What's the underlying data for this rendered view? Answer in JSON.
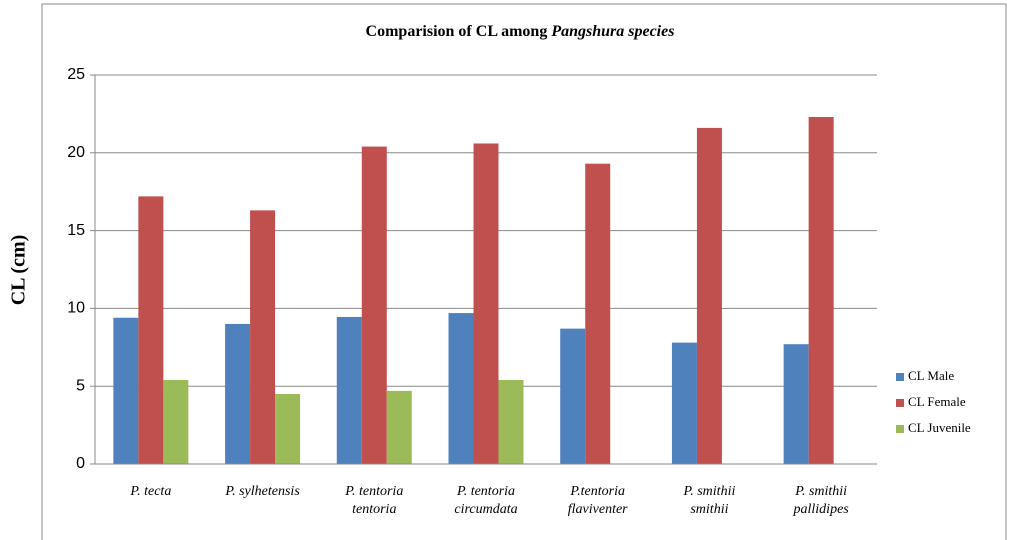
{
  "chart_data": {
    "type": "bar",
    "title": "Comparision of CL among",
    "title_italic": "Pangshura species",
    "ylabel": "CL (cm)",
    "categories": [
      [
        "P. tecta"
      ],
      [
        "P. sylhetensis"
      ],
      [
        "P. tentoria",
        "tentoria"
      ],
      [
        "P. tentoria",
        "circumdata"
      ],
      [
        "P.tentoria",
        "flaviventer"
      ],
      [
        "P. smithii",
        "smithii"
      ],
      [
        "P. smithii",
        "pallidipes"
      ]
    ],
    "series": [
      {
        "name": "CL Male",
        "color": "#4f81bd",
        "values": [
          9.4,
          9.0,
          9.45,
          9.7,
          8.7,
          7.8,
          7.7
        ]
      },
      {
        "name": "CL Female",
        "color": "#c0504d",
        "values": [
          17.2,
          16.3,
          20.4,
          20.6,
          19.3,
          21.6,
          22.3
        ]
      },
      {
        "name": "CL Juvenile",
        "color": "#9bbb59",
        "values": [
          5.4,
          4.5,
          4.7,
          5.4,
          null,
          null,
          null
        ]
      }
    ],
    "ylim": [
      0,
      25
    ],
    "yticks": [
      0,
      5,
      10,
      15,
      20,
      25
    ],
    "grid": true,
    "legend": "right"
  }
}
